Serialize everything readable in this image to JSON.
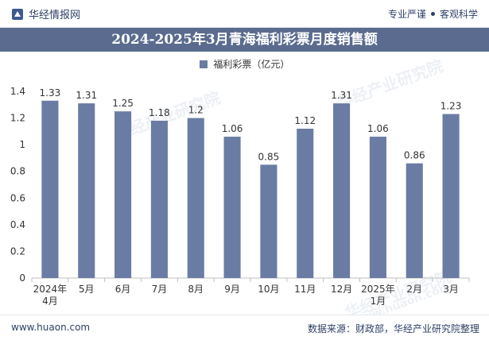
{
  "header": {
    "brand": "华经情报网",
    "tagline_left": "专业严谨",
    "tagline_right": "客观科学"
  },
  "title": "2024-2025年3月青海福利彩票月度销售额",
  "legend_label": "福利彩票（亿元）",
  "footer": {
    "site": "www.huaon.com",
    "source": "数据来源：财政部，华经产业研究院整理"
  },
  "watermarks": [
    "华经产业研究院",
    "华经产业研究院",
    "华经产业研究院",
    "www.huaon.com"
  ],
  "colors": {
    "bar": "#6a7ca4",
    "title_bg": "#5a6b8f",
    "text_dark": "#2d3f66"
  },
  "chart_data": {
    "type": "bar",
    "categories": [
      "2024年\n4月",
      "5月",
      "6月",
      "7月",
      "8月",
      "9月",
      "10月",
      "11月",
      "12月",
      "2025年\n1月",
      "2月",
      "3月"
    ],
    "series": [
      {
        "name": "福利彩票（亿元）",
        "values": [
          1.33,
          1.31,
          1.25,
          1.18,
          1.2,
          1.06,
          0.85,
          1.12,
          1.31,
          1.06,
          0.86,
          1.23
        ]
      }
    ],
    "value_labels": [
      "1.33",
      "1.31",
      "1.25",
      "1.18",
      "1.2",
      "1.06",
      "0.85",
      "1.12",
      "1.31",
      "1.06",
      "0.86",
      "1.23"
    ],
    "yticks": [
      "0",
      "0.2",
      "0.4",
      "0.6",
      "0.8",
      "1",
      "1.2",
      "1.4"
    ],
    "ylim": [
      0,
      1.4
    ],
    "grid": false,
    "legend_position": "top-center"
  }
}
